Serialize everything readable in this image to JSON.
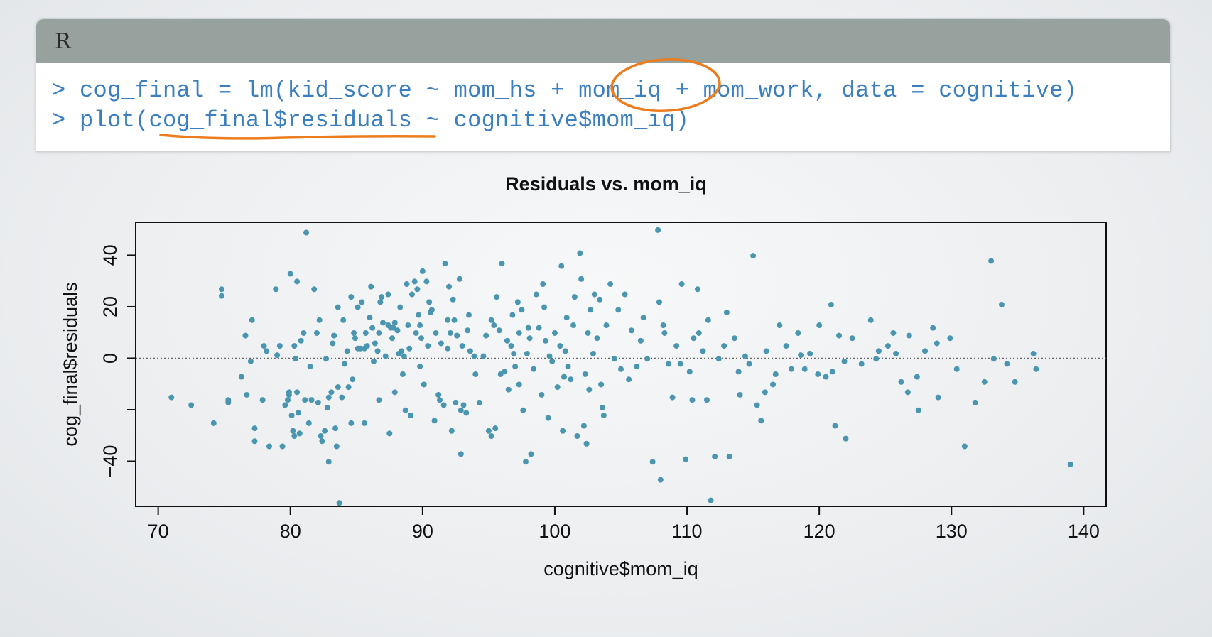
{
  "code_panel": {
    "language": "R",
    "lines": [
      "> cog_final = lm(kid_score ~ mom_hs + mom_iq + mom_work, data = cognitive)",
      "> plot(cog_final$residuals ~ cognitive$mom_iq)"
    ]
  },
  "colors": {
    "points": "#4a95b0",
    "annotation": "#ec7d1f",
    "code_text": "#3c7fbf",
    "header": "#97a19e"
  },
  "chart_data": {
    "type": "scatter",
    "title": "Residuals vs. mom_iq",
    "xlabel": "cognitive$mom_iq",
    "ylabel": "cog_final$residuals",
    "xlim": [
      68.3,
      141.7
    ],
    "ylim": [
      -57.5,
      52.8
    ],
    "xticks": [
      70,
      80,
      90,
      100,
      110,
      120,
      130,
      140
    ],
    "yticks": [
      -40,
      -20,
      0,
      20,
      40
    ],
    "ytick_labels": [
      "−40",
      "",
      "0",
      "20",
      "40"
    ],
    "reference_line": {
      "y": 0,
      "style": "dotted"
    },
    "grid": false,
    "points": [
      [
        71.0,
        -15.2
      ],
      [
        72.5,
        -18.2
      ],
      [
        74.2,
        -25.2
      ],
      [
        74.8,
        26.8
      ],
      [
        74.8,
        24.2
      ],
      [
        75.3,
        -17.2
      ],
      [
        75.3,
        -16.2
      ],
      [
        76.6,
        8.8
      ],
      [
        76.7,
        -14.2
      ],
      [
        77.1,
        14.8
      ],
      [
        77.0,
        -1.2
      ],
      [
        77.3,
        -27.2
      ],
      [
        77.3,
        -32.2
      ],
      [
        77.9,
        -16.2
      ],
      [
        78.0,
        4.8
      ],
      [
        78.2,
        2.8
      ],
      [
        78.4,
        -34.2
      ],
      [
        78.9,
        26.8
      ],
      [
        79.2,
        4.8
      ],
      [
        79.4,
        -34.2
      ],
      [
        79.6,
        -18.2
      ],
      [
        79.8,
        -16.2
      ],
      [
        79.9,
        -14.2
      ],
      [
        79.9,
        -13.2
      ],
      [
        80.0,
        32.8
      ],
      [
        80.1,
        -22.2
      ],
      [
        80.2,
        -28.2
      ],
      [
        80.3,
        -30.2
      ],
      [
        80.3,
        4.8
      ],
      [
        80.4,
        -0.2
      ],
      [
        80.5,
        29.8
      ],
      [
        80.5,
        -13.2
      ],
      [
        80.6,
        -21.2
      ],
      [
        80.7,
        -29.2
      ],
      [
        80.8,
        6.8
      ],
      [
        81.0,
        9.8
      ],
      [
        81.1,
        -16.2
      ],
      [
        81.2,
        48.8
      ],
      [
        81.4,
        -25.2
      ],
      [
        81.6,
        -16.2
      ],
      [
        81.8,
        26.8
      ],
      [
        82.0,
        9.8
      ],
      [
        82.1,
        -17.2
      ],
      [
        82.2,
        14.8
      ],
      [
        82.3,
        -30.2
      ],
      [
        82.4,
        -32.2
      ],
      [
        82.6,
        -28.2
      ],
      [
        82.7,
        -0.2
      ],
      [
        82.8,
        -19.2
      ],
      [
        82.9,
        -15.2
      ],
      [
        82.9,
        -40.2
      ],
      [
        83.1,
        -13.2
      ],
      [
        83.3,
        8.8
      ],
      [
        83.4,
        -27.2
      ],
      [
        83.5,
        -34.2
      ],
      [
        83.6,
        -11.2
      ],
      [
        83.6,
        19.8
      ],
      [
        83.7,
        -56.2
      ],
      [
        83.9,
        -15.2
      ],
      [
        84.0,
        14.8
      ],
      [
        84.1,
        -2.2
      ],
      [
        84.3,
        2.8
      ],
      [
        84.4,
        -11.2
      ],
      [
        84.6,
        23.8
      ],
      [
        84.6,
        -25.2
      ],
      [
        84.8,
        9.8
      ],
      [
        84.9,
        7.8
      ],
      [
        85.1,
        3.8
      ],
      [
        85.1,
        19.8
      ],
      [
        85.3,
        3.8
      ],
      [
        85.4,
        21.8
      ],
      [
        85.6,
        -25.2
      ],
      [
        85.6,
        3.8
      ],
      [
        85.7,
        9.8
      ],
      [
        85.8,
        4.8
      ],
      [
        86.0,
        15.8
      ],
      [
        86.1,
        27.8
      ],
      [
        86.2,
        11.8
      ],
      [
        86.4,
        5.8
      ],
      [
        86.6,
        2.8
      ],
      [
        86.7,
        9.8
      ],
      [
        86.8,
        21.8
      ],
      [
        86.9,
        23.8
      ],
      [
        87.0,
        13.8
      ],
      [
        87.2,
        0.8
      ],
      [
        87.4,
        12.8
      ],
      [
        87.4,
        24.8
      ],
      [
        87.5,
        -29.2
      ],
      [
        87.6,
        11.8
      ],
      [
        87.7,
        7.8
      ],
      [
        87.8,
        11.8
      ],
      [
        87.9,
        13.8
      ],
      [
        88.1,
        10.8
      ],
      [
        88.2,
        1.8
      ],
      [
        88.4,
        2.8
      ],
      [
        88.5,
        -6.2
      ],
      [
        88.6,
        0.8
      ],
      [
        88.7,
        -20.2
      ],
      [
        88.8,
        28.8
      ],
      [
        88.9,
        12.8
      ],
      [
        89.0,
        3.8
      ],
      [
        89.1,
        -22.2
      ],
      [
        89.2,
        24.8
      ],
      [
        89.4,
        29.8
      ],
      [
        89.5,
        9.8
      ],
      [
        89.6,
        26.8
      ],
      [
        89.7,
        16.8
      ],
      [
        89.8,
        12.8
      ],
      [
        89.9,
        7.8
      ],
      [
        90.0,
        33.8
      ],
      [
        90.1,
        -10.2
      ],
      [
        90.3,
        29.8
      ],
      [
        90.4,
        4.8
      ],
      [
        90.6,
        17.8
      ],
      [
        90.7,
        18.8
      ],
      [
        90.9,
        -24.2
      ],
      [
        91.0,
        9.8
      ],
      [
        91.2,
        -14.2
      ],
      [
        91.3,
        -16.2
      ],
      [
        91.4,
        5.8
      ],
      [
        91.6,
        -18.2
      ],
      [
        91.7,
        36.8
      ],
      [
        91.9,
        3.8
      ],
      [
        92.0,
        27.8
      ],
      [
        92.2,
        -28.2
      ],
      [
        92.3,
        22.8
      ],
      [
        92.4,
        14.8
      ],
      [
        92.5,
        -17.2
      ],
      [
        92.6,
        8.8
      ],
      [
        92.8,
        30.8
      ],
      [
        92.9,
        -37.2
      ],
      [
        92.9,
        -20.2
      ],
      [
        93.0,
        4.8
      ],
      [
        93.1,
        -18.2
      ],
      [
        93.3,
        -21.2
      ],
      [
        93.4,
        10.8
      ],
      [
        93.6,
        2.8
      ],
      [
        93.9,
        0.8
      ],
      [
        94.0,
        -6.2
      ],
      [
        94.3,
        -17.2
      ],
      [
        94.6,
        0.8
      ],
      [
        95.0,
        -28.2
      ],
      [
        95.2,
        14.8
      ],
      [
        95.2,
        -30.2
      ],
      [
        95.4,
        12.8
      ],
      [
        95.5,
        -27.2
      ],
      [
        95.6,
        23.8
      ],
      [
        95.8,
        10.8
      ],
      [
        96.0,
        36.8
      ],
      [
        96.2,
        -5.2
      ],
      [
        96.4,
        6.8
      ],
      [
        96.5,
        -12.2
      ],
      [
        96.7,
        4.8
      ],
      [
        96.9,
        1.8
      ],
      [
        97.0,
        -3.2
      ],
      [
        97.2,
        21.8
      ],
      [
        97.3,
        9.8
      ],
      [
        97.5,
        18.8
      ],
      [
        97.6,
        -20.2
      ],
      [
        97.8,
        -40.2
      ],
      [
        98.0,
        11.8
      ],
      [
        98.2,
        -37.2
      ],
      [
        98.4,
        -4.2
      ],
      [
        98.6,
        24.8
      ],
      [
        98.8,
        11.8
      ],
      [
        99.0,
        -14.2
      ],
      [
        99.1,
        28.8
      ],
      [
        99.3,
        6.8
      ],
      [
        99.5,
        -23.2
      ],
      [
        99.6,
        0.8
      ],
      [
        99.8,
        -1.2
      ],
      [
        100.0,
        9.8
      ],
      [
        100.2,
        -11.2
      ],
      [
        100.4,
        4.8
      ],
      [
        100.5,
        35.8
      ],
      [
        100.6,
        -28.2
      ],
      [
        100.8,
        2.8
      ],
      [
        101.0,
        -3.2
      ],
      [
        101.2,
        -8.2
      ],
      [
        101.4,
        12.8
      ],
      [
        101.5,
        23.8
      ],
      [
        101.7,
        -30.2
      ],
      [
        101.9,
        40.8
      ],
      [
        102.0,
        30.8
      ],
      [
        102.2,
        -26.2
      ],
      [
        102.4,
        -33.2
      ],
      [
        102.5,
        9.8
      ],
      [
        102.7,
        18.8
      ],
      [
        102.9,
        1.8
      ],
      [
        103.0,
        24.8
      ],
      [
        103.2,
        7.8
      ],
      [
        103.4,
        22.8
      ],
      [
        103.6,
        -19.2
      ],
      [
        103.7,
        -22.2
      ],
      [
        103.9,
        12.8
      ],
      [
        104.2,
        28.8
      ],
      [
        104.5,
        -0.2
      ],
      [
        105.0,
        -4.2
      ],
      [
        105.3,
        24.8
      ],
      [
        105.8,
        10.8
      ],
      [
        106.2,
        -3.2
      ],
      [
        106.7,
        15.8
      ],
      [
        107.0,
        -0.2
      ],
      [
        107.4,
        -40.2
      ],
      [
        107.8,
        49.8
      ],
      [
        108.0,
        -47.2
      ],
      [
        108.3,
        9.8
      ],
      [
        108.6,
        -2.2
      ],
      [
        108.9,
        -15.2
      ],
      [
        109.2,
        4.8
      ],
      [
        109.6,
        28.8
      ],
      [
        109.9,
        -39.2
      ],
      [
        110.2,
        -5.2
      ],
      [
        110.5,
        7.8
      ],
      [
        110.8,
        26.8
      ],
      [
        111.2,
        2.8
      ],
      [
        111.5,
        -16.2
      ],
      [
        111.8,
        -55.2
      ],
      [
        112.1,
        -38.2
      ],
      [
        112.4,
        -0.2
      ],
      [
        112.8,
        4.8
      ],
      [
        113.2,
        -38.2
      ],
      [
        113.6,
        7.8
      ],
      [
        114.0,
        -14.2
      ],
      [
        114.4,
        0.8
      ],
      [
        115.0,
        39.8
      ],
      [
        115.3,
        -18.2
      ],
      [
        115.6,
        -24.2
      ],
      [
        116.0,
        2.8
      ],
      [
        116.5,
        -10.2
      ],
      [
        117.0,
        12.8
      ],
      [
        117.5,
        4.8
      ],
      [
        117.9,
        -4.2
      ],
      [
        118.4,
        9.8
      ],
      [
        118.9,
        -4.2
      ],
      [
        119.3,
        1.8
      ],
      [
        120.0,
        12.8
      ],
      [
        120.5,
        -7.2
      ],
      [
        120.9,
        20.8
      ],
      [
        121.2,
        -26.2
      ],
      [
        121.5,
        8.8
      ],
      [
        122.0,
        -31.2
      ],
      [
        122.5,
        7.8
      ],
      [
        123.2,
        -2.2
      ],
      [
        123.9,
        14.8
      ],
      [
        124.5,
        2.8
      ],
      [
        125.2,
        4.8
      ],
      [
        125.8,
        1.8
      ],
      [
        126.2,
        -9.2
      ],
      [
        126.8,
        8.8
      ],
      [
        127.5,
        -20.2
      ],
      [
        128.0,
        2.8
      ],
      [
        128.6,
        11.8
      ],
      [
        129.0,
        -15.2
      ],
      [
        129.9,
        7.8
      ],
      [
        131.0,
        -34.2
      ],
      [
        131.8,
        -17.2
      ],
      [
        132.5,
        -9.2
      ],
      [
        133.0,
        37.8
      ],
      [
        133.2,
        -0.2
      ],
      [
        133.8,
        20.8
      ],
      [
        134.2,
        -2.2
      ],
      [
        134.8,
        -9.2
      ],
      [
        136.2,
        1.8
      ],
      [
        136.4,
        -4.2
      ],
      [
        139.0,
        -41.2
      ],
      [
        76.3,
        -7.2
      ],
      [
        79.0,
        1.2
      ],
      [
        81.5,
        -3.2
      ],
      [
        84.7,
        -8.2
      ],
      [
        86.3,
        -1.2
      ],
      [
        87.9,
        -13.2
      ],
      [
        88.3,
        19.8
      ],
      [
        89.8,
        -3.2
      ],
      [
        90.5,
        21.8
      ],
      [
        91.9,
        14.8
      ],
      [
        93.5,
        16.8
      ],
      [
        94.8,
        8.8
      ],
      [
        96.8,
        16.8
      ],
      [
        97.9,
        1.8
      ],
      [
        99.2,
        19.8
      ],
      [
        100.9,
        15.8
      ],
      [
        102.3,
        -6.2
      ],
      [
        103.5,
        -10.2
      ],
      [
        104.8,
        18.8
      ],
      [
        106.5,
        6.8
      ],
      [
        107.9,
        21.8
      ],
      [
        109.5,
        -2.2
      ],
      [
        110.9,
        9.8
      ],
      [
        113.0,
        17.8
      ],
      [
        114.7,
        -2.2
      ],
      [
        116.7,
        -6.2
      ],
      [
        118.6,
        1.2
      ],
      [
        119.9,
        -6.2
      ],
      [
        121.9,
        -1.2
      ],
      [
        124.3,
        -0.2
      ],
      [
        125.6,
        9.8
      ],
      [
        127.4,
        -7.2
      ],
      [
        128.9,
        5.8
      ],
      [
        130.4,
        -4.2
      ],
      [
        108.2,
        12.8
      ],
      [
        105.6,
        -8.2
      ],
      [
        98.1,
        7.8
      ],
      [
        92.1,
        9.8
      ],
      [
        86.7,
        -16.2
      ],
      [
        83.2,
        5.8
      ],
      [
        110.4,
        -16.2
      ],
      [
        115.9,
        -13.2
      ],
      [
        121.0,
        -5.2
      ],
      [
        126.7,
        -13.2
      ],
      [
        113.9,
        -5.2
      ],
      [
        111.6,
        14.8
      ],
      [
        97.3,
        -10.2
      ],
      [
        95.9,
        -6.2
      ],
      [
        100.7,
        -7.2
      ],
      [
        102.6,
        -12.2
      ]
    ]
  }
}
